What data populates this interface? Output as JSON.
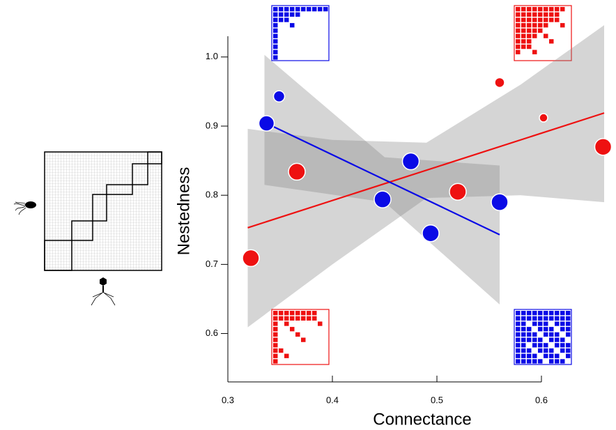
{
  "chart_data": {
    "type": "scatter",
    "x_label": "Connectance",
    "y_label": "Nestedness",
    "xlim": [
      0.3,
      0.67
    ],
    "ylim": [
      0.53,
      1.03
    ],
    "xticks": [
      0.3,
      0.4,
      0.5,
      0.6
    ],
    "yticks": [
      0.6,
      0.7,
      0.8,
      0.9,
      {
        "value": 1,
        "label": "1.0"
      }
    ],
    "series": [
      {
        "color": "#ee1111",
        "x": [
          0.322,
          0.366,
          0.52,
          0.56,
          0.602,
          0.659
        ],
        "values": [
          0.709,
          0.834,
          0.805,
          0.963,
          0.912,
          0.87
        ],
        "sizes": [
          12,
          12,
          12,
          7,
          6,
          12
        ],
        "fit_x": [
          0.319,
          0.66
        ],
        "fit_y": [
          0.753,
          0.919
        ],
        "ci_x": [
          0.319,
          0.4,
          0.49,
          0.58,
          0.66
        ],
        "ci_upper": [
          0.896,
          0.88,
          0.876,
          0.96,
          1.046
        ],
        "ci_lower": [
          0.609,
          0.7,
          0.796,
          0.8,
          0.79
        ]
      },
      {
        "color": "#0a0ae6",
        "x": [
          0.349,
          0.337,
          0.448,
          0.475,
          0.494,
          0.56
        ],
        "values": [
          0.943,
          0.904,
          0.794,
          0.849,
          0.745,
          0.79
        ],
        "sizes": [
          8,
          11,
          12,
          12,
          12,
          12
        ],
        "fit_x": [
          0.337,
          0.56
        ],
        "fit_y": [
          0.904,
          0.743
        ],
        "ci_x": [
          0.335,
          0.45,
          0.56
        ],
        "ci_upper": [
          1.003,
          0.855,
          0.843
        ],
        "ci_lower": [
          0.815,
          0.79,
          0.642
        ]
      }
    ]
  }
}
